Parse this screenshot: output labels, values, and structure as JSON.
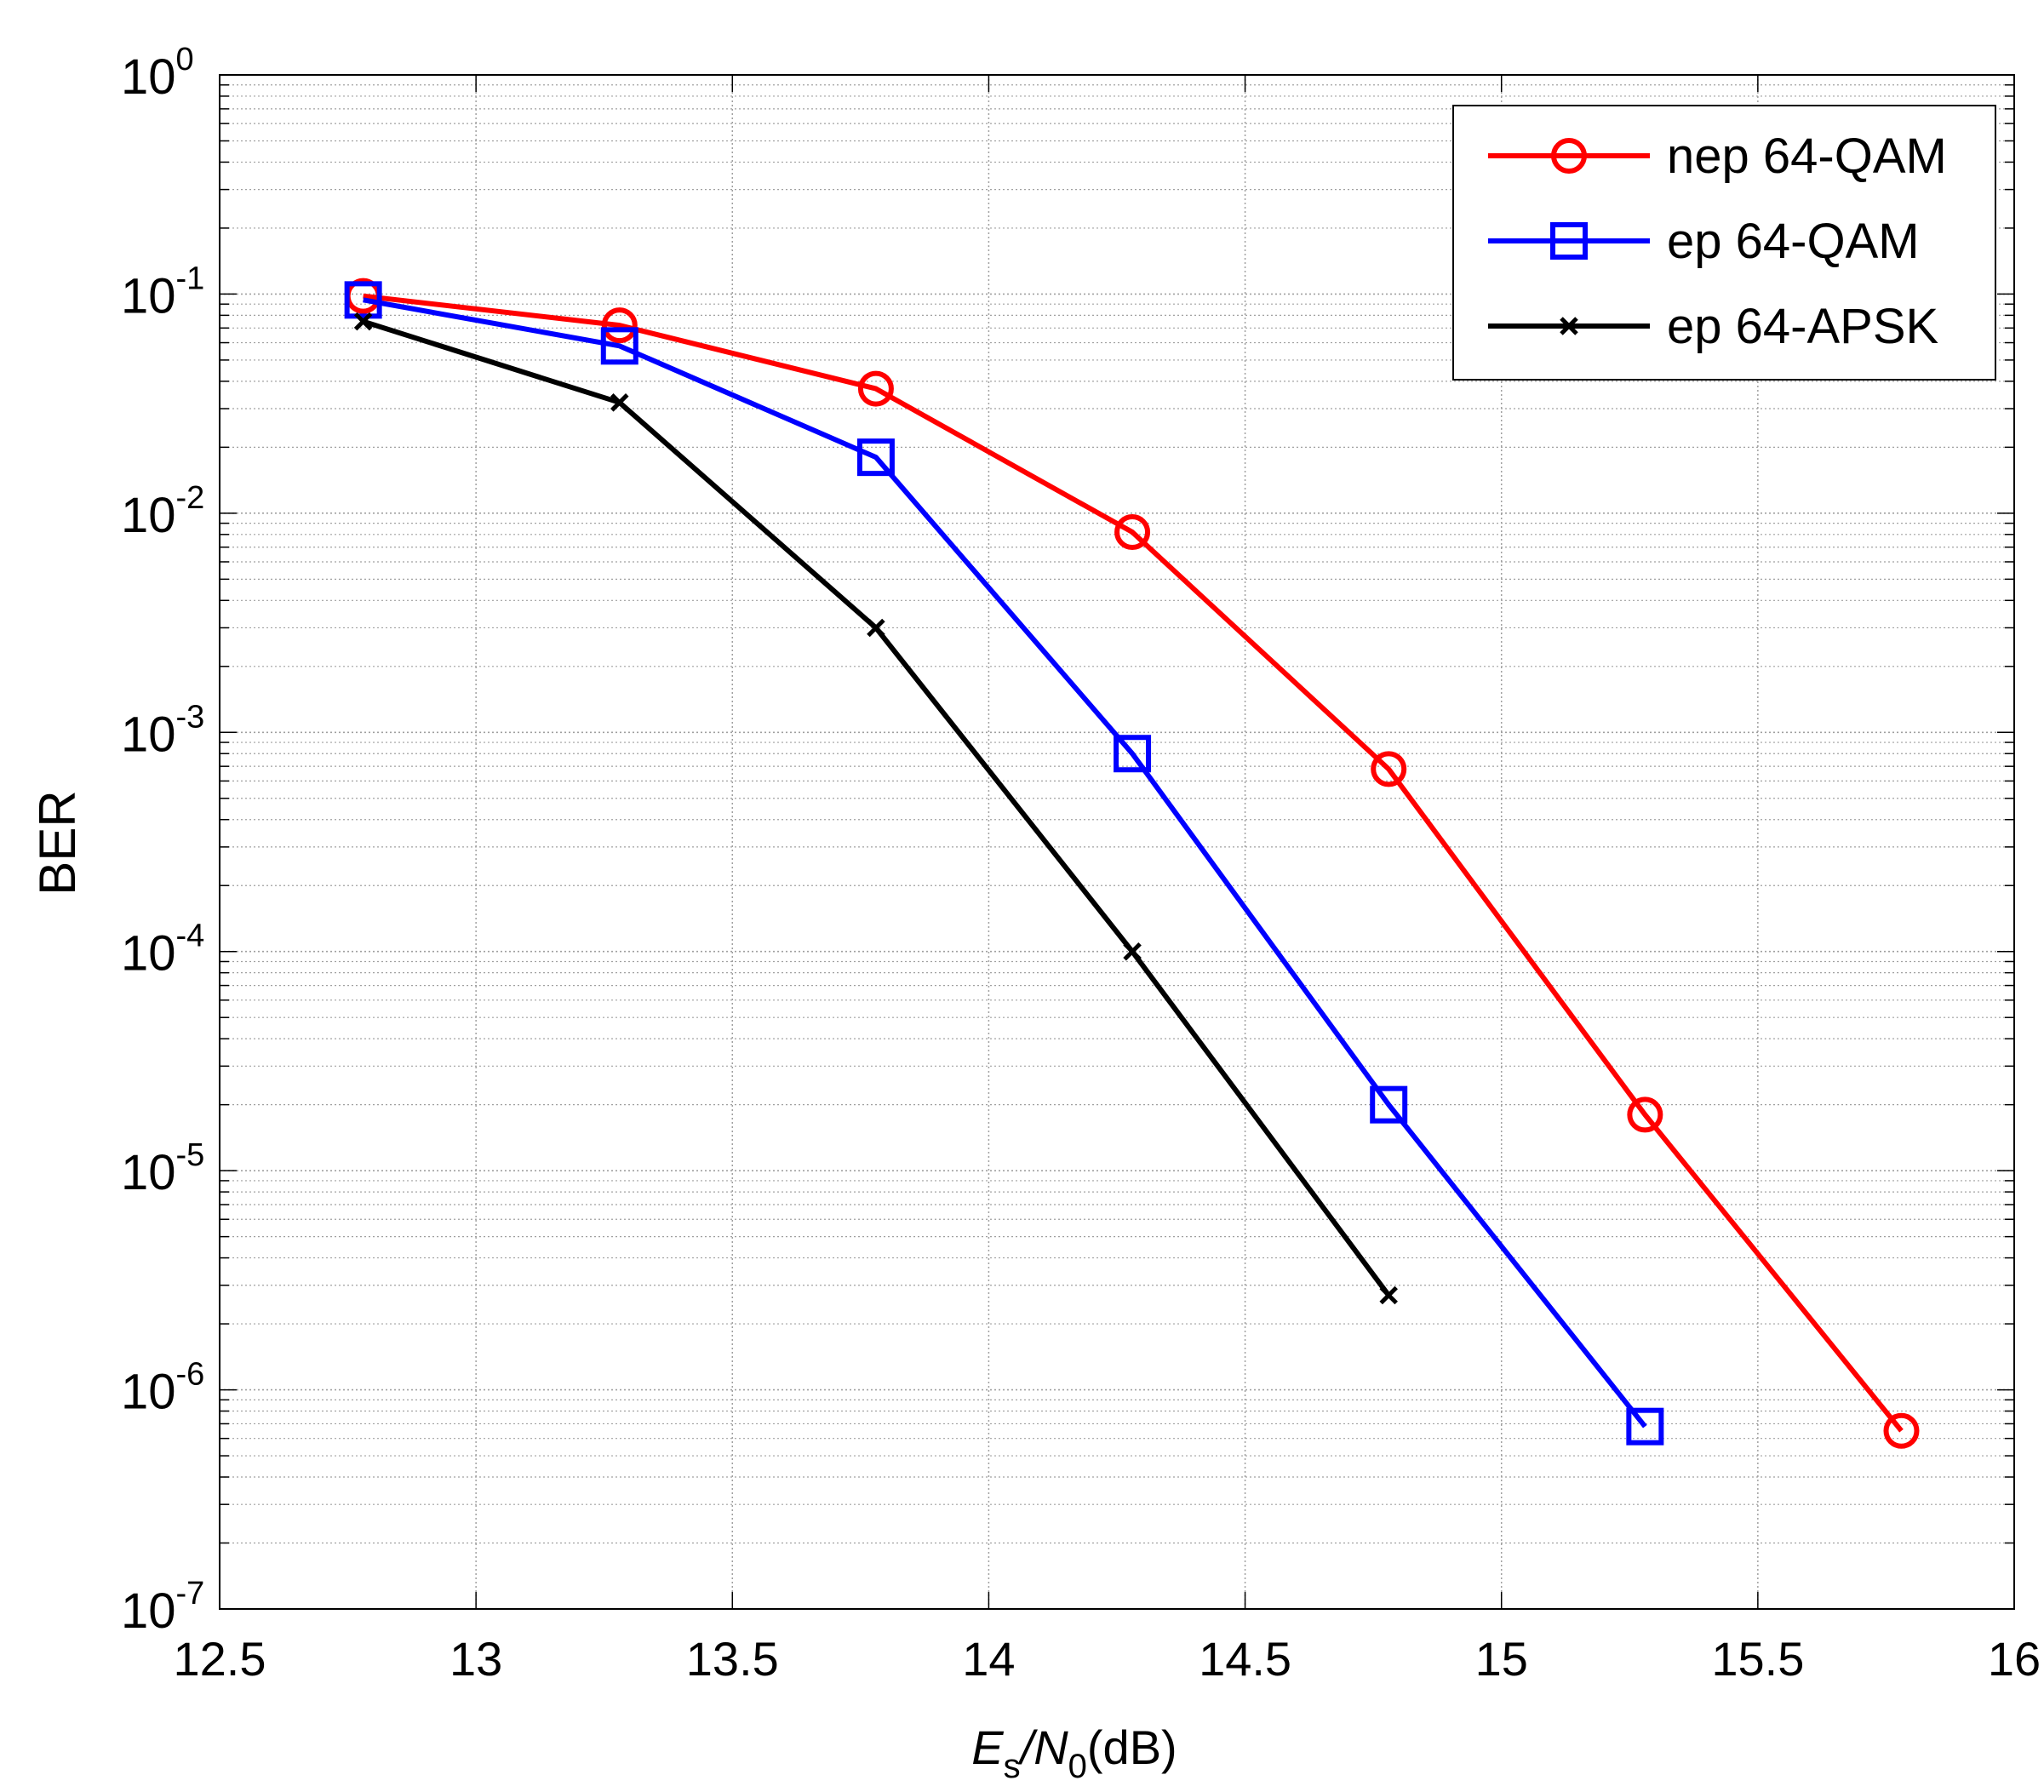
{
  "chart_data": {
    "type": "line",
    "title": "",
    "xlabel": {
      "main": "E",
      "sub1": "s",
      "mid": "/N",
      "sub2": "0",
      "tail": "(dB)"
    },
    "ylabel": "BER",
    "xlim": [
      12.5,
      16
    ],
    "ylim": [
      1e-07,
      1
    ],
    "yscale": "log",
    "grid": true,
    "legend_position": "top-right",
    "x_ticks": [
      12.5,
      13,
      13.5,
      14,
      14.5,
      15,
      15.5,
      16
    ],
    "x_tick_labels": [
      "12.5",
      "13",
      "13.5",
      "14",
      "14.5",
      "15",
      "15.5",
      "16"
    ],
    "y_ticks": [
      {
        "exp": 0,
        "base": "10",
        "sup": "0"
      },
      {
        "exp": -1,
        "base": "10",
        "sup": "-1"
      },
      {
        "exp": -2,
        "base": "10",
        "sup": "-2"
      },
      {
        "exp": -3,
        "base": "10",
        "sup": "-3"
      },
      {
        "exp": -4,
        "base": "10",
        "sup": "-4"
      },
      {
        "exp": -5,
        "base": "10",
        "sup": "-5"
      },
      {
        "exp": -6,
        "base": "10",
        "sup": "-6"
      },
      {
        "exp": -7,
        "base": "10",
        "sup": "-7"
      }
    ],
    "series": [
      {
        "name": "nep 64-QAM",
        "color": "#ff0000",
        "marker": "circle",
        "x": [
          12.78,
          13.28,
          13.78,
          14.28,
          14.78,
          15.28,
          15.78
        ],
        "y": [
          0.098,
          0.072,
          0.037,
          0.0082,
          0.00068,
          1.8e-05,
          6.5e-07
        ]
      },
      {
        "name": "ep 64-QAM",
        "color": "#0000ff",
        "marker": "square",
        "x": [
          12.78,
          13.28,
          13.78,
          14.28,
          14.78,
          15.28
        ],
        "y": [
          0.094,
          0.058,
          0.018,
          0.0008,
          2e-05,
          6.8e-07
        ]
      },
      {
        "name": "ep 64-APSK",
        "color": "#000000",
        "marker": "x",
        "x": [
          12.78,
          13.28,
          13.78,
          14.28,
          14.78
        ],
        "y": [
          0.075,
          0.032,
          0.003,
          0.0001,
          2.7e-06
        ]
      }
    ]
  }
}
